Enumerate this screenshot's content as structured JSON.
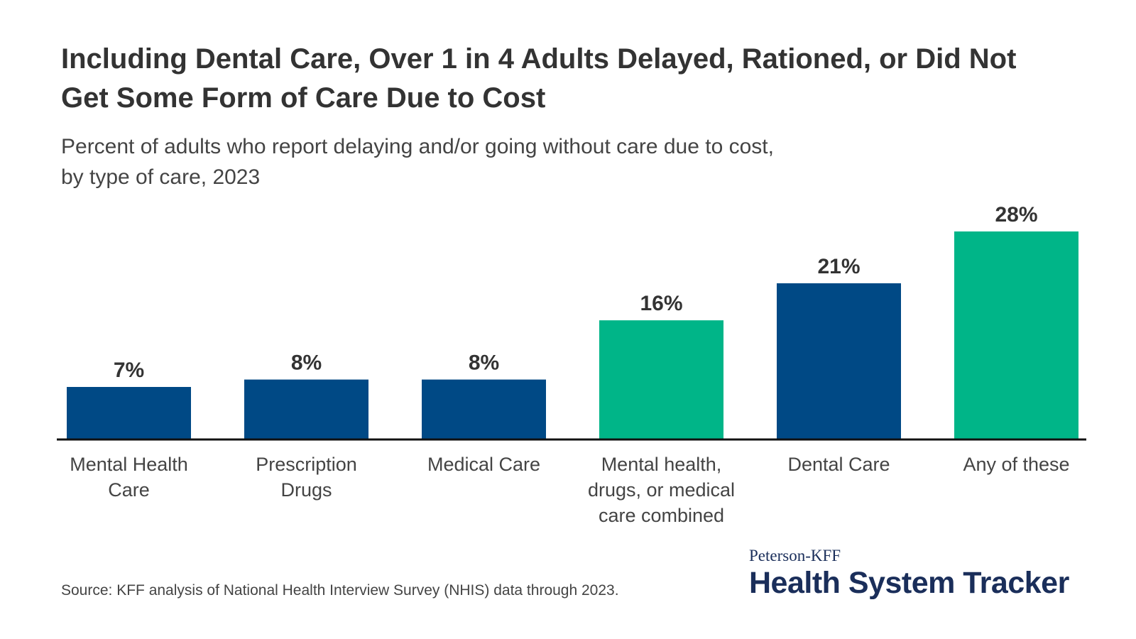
{
  "header": {
    "title": "Including Dental Care, Over 1 in 4 Adults Delayed, Rationed, or Did Not Get Some Form of Care Due to Cost",
    "subtitle_lines": [
      "Percent of adults who report delaying and/or going without care due to cost,",
      "by type of care, 2023"
    ]
  },
  "footer": {
    "source": "Source: KFF analysis of National Health Interview Survey (NHIS) data through 2023.",
    "brand_top": "Peterson-KFF",
    "brand_main": "Health System Tracker"
  },
  "colors": {
    "navy": "#004985",
    "green": "#00b588",
    "axis": "#111111"
  },
  "chart_data": {
    "type": "bar",
    "categories": [
      [
        "Mental Health",
        "Care"
      ],
      [
        "Prescription",
        "Drugs"
      ],
      [
        "Medical Care"
      ],
      [
        "Mental health,",
        "drugs, or medical",
        "care combined"
      ],
      [
        "Dental Care"
      ],
      [
        "Any of these"
      ]
    ],
    "values": [
      7,
      8,
      8,
      16,
      21,
      28
    ],
    "value_labels": [
      "7%",
      "8%",
      "8%",
      "16%",
      "21%",
      "28%"
    ],
    "bar_colors": [
      "navy",
      "navy",
      "navy",
      "green",
      "navy",
      "green"
    ],
    "ylim": [
      0,
      28
    ],
    "grid": false,
    "xlabel": "",
    "ylabel": ""
  }
}
